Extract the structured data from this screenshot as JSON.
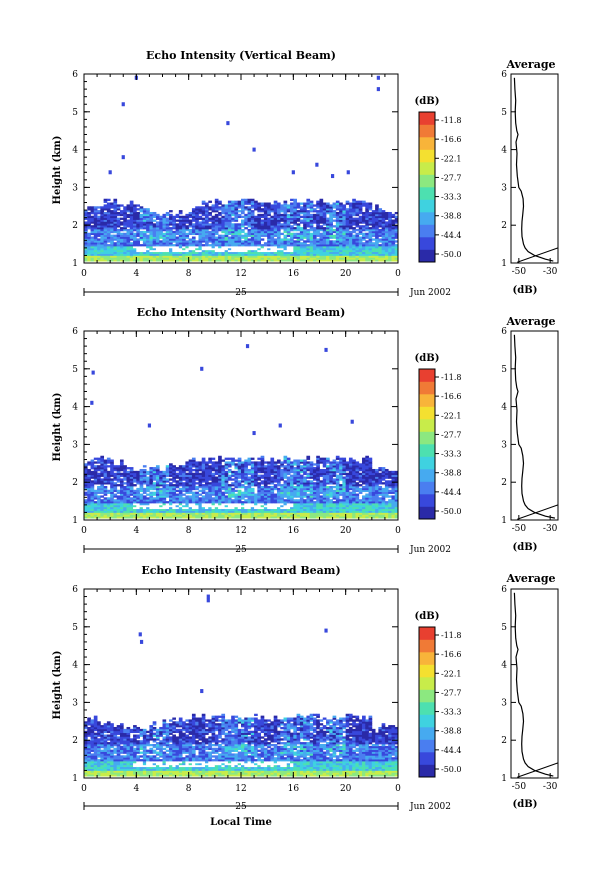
{
  "chart_data": [
    {
      "type": "heatmap",
      "title": "Echo Intensity (Vertical Beam)",
      "ylabel": "Height (km)",
      "x_ticks": [
        "0",
        "4",
        "8",
        "12",
        "16",
        "20",
        "0"
      ],
      "y_ticks": [
        "1",
        "2",
        "3",
        "4",
        "5",
        "6"
      ],
      "xlim": [
        0,
        24
      ],
      "ylim": [
        1,
        6
      ],
      "date_day": "25",
      "date_month_year": "Jun 2002",
      "colorbar": {
        "unit": "(dB)",
        "levels": [
          "-11.8",
          "-16.6",
          "-22.1",
          "-27.7",
          "-33.3",
          "-38.8",
          "-44.4",
          "-50.0"
        ]
      },
      "profile": {
        "title": "Average",
        "xlabel": "(dB)",
        "x_ticks": [
          "-50",
          "-30"
        ],
        "xlim": [
          -55,
          -25
        ],
        "height": [
          1.05,
          1.1,
          1.2,
          1.3,
          1.4,
          1.5,
          1.7,
          1.9,
          2.1,
          2.3,
          2.5,
          2.7,
          2.9,
          3.0,
          3.3,
          3.6,
          3.9,
          4.2,
          4.4,
          4.5,
          4.7,
          5.0,
          5.3,
          5.6,
          5.9
        ],
        "echo_db": [
          -28,
          -33,
          -40,
          -44,
          -46,
          -47,
          -48,
          -48.2,
          -48,
          -47.5,
          -47,
          -47.3,
          -48.5,
          -50,
          -51,
          -51.5,
          -51.2,
          -51.8,
          -50.5,
          -51.3,
          -52,
          -52.3,
          -52,
          -52.5,
          -52.8
        ]
      },
      "scatter_echoes": [
        {
          "time": 4.0,
          "height": 5.9
        },
        {
          "time": 3.0,
          "height": 5.2
        },
        {
          "time": 3.0,
          "height": 3.8
        },
        {
          "time": 11.0,
          "height": 4.7
        },
        {
          "time": 13.0,
          "height": 4.0
        },
        {
          "time": 16.0,
          "height": 3.4
        },
        {
          "time": 17.8,
          "height": 3.6
        },
        {
          "time": 19.0,
          "height": 3.3
        },
        {
          "time": 20.2,
          "height": 3.4
        },
        {
          "time": 22.5,
          "height": 5.9
        },
        {
          "time": 22.5,
          "height": 5.6
        },
        {
          "time": 2.0,
          "height": 3.4
        }
      ]
    },
    {
      "type": "heatmap",
      "title": "Echo Intensity (Northward Beam)",
      "ylabel": "Height (km)",
      "x_ticks": [
        "0",
        "4",
        "8",
        "12",
        "16",
        "20",
        "0"
      ],
      "y_ticks": [
        "1",
        "2",
        "3",
        "4",
        "5",
        "6"
      ],
      "xlim": [
        0,
        24
      ],
      "ylim": [
        1,
        6
      ],
      "date_day": "25",
      "date_month_year": "Jun 2002",
      "colorbar": {
        "unit": "(dB)",
        "levels": [
          "-11.8",
          "-16.6",
          "-22.1",
          "-27.7",
          "-33.3",
          "-38.8",
          "-44.4",
          "-50.0"
        ]
      },
      "profile": {
        "title": "Average",
        "xlabel": "(dB)",
        "x_ticks": [
          "-50",
          "-30"
        ],
        "xlim": [
          -55,
          -25
        ],
        "height": [
          1.05,
          1.1,
          1.2,
          1.3,
          1.4,
          1.5,
          1.7,
          1.9,
          2.1,
          2.3,
          2.5,
          2.7,
          2.9,
          3.0,
          3.3,
          3.6,
          3.9,
          4.2,
          4.4,
          4.5,
          4.7,
          5.0,
          5.3,
          5.6,
          5.9
        ],
        "echo_db": [
          -27,
          -33,
          -40,
          -44,
          -46,
          -47,
          -48,
          -48.2,
          -48,
          -47.5,
          -47,
          -47.5,
          -48.5,
          -50,
          -51,
          -51.5,
          -51.2,
          -51.8,
          -50.5,
          -51.3,
          -52,
          -52.3,
          -52,
          -52.5,
          -52.8
        ]
      },
      "scatter_echoes": [
        {
          "time": 0.7,
          "height": 4.9
        },
        {
          "time": 0.6,
          "height": 4.1
        },
        {
          "time": 9.0,
          "height": 5.0
        },
        {
          "time": 12.5,
          "height": 5.6
        },
        {
          "time": 18.5,
          "height": 5.5
        },
        {
          "time": 15.0,
          "height": 3.5
        },
        {
          "time": 20.5,
          "height": 3.6
        },
        {
          "time": 5.0,
          "height": 3.5
        },
        {
          "time": 13.0,
          "height": 3.3
        }
      ]
    },
    {
      "type": "heatmap",
      "title": "Echo Intensity (Eastward Beam)",
      "ylabel": "Height (km)",
      "xlabel": "Local Time",
      "x_ticks": [
        "0",
        "4",
        "8",
        "12",
        "16",
        "20",
        "0"
      ],
      "y_ticks": [
        "1",
        "2",
        "3",
        "4",
        "5",
        "6"
      ],
      "xlim": [
        0,
        24
      ],
      "ylim": [
        1,
        6
      ],
      "date_day": "25",
      "date_month_year": "Jun 2002",
      "colorbar": {
        "unit": "(dB)",
        "levels": [
          "-11.8",
          "-16.6",
          "-22.1",
          "-27.7",
          "-33.3",
          "-38.8",
          "-44.4",
          "-50.0"
        ]
      },
      "profile": {
        "title": "Average",
        "xlabel": "(dB)",
        "x_ticks": [
          "-50",
          "-30"
        ],
        "xlim": [
          -55,
          -25
        ],
        "height": [
          1.05,
          1.1,
          1.2,
          1.3,
          1.4,
          1.5,
          1.7,
          1.9,
          2.1,
          2.3,
          2.5,
          2.7,
          2.9,
          3.0,
          3.3,
          3.6,
          3.9,
          4.2,
          4.4,
          4.5,
          4.7,
          5.0,
          5.3,
          5.6,
          5.9
        ],
        "echo_db": [
          -28,
          -33,
          -40,
          -44,
          -46,
          -47,
          -48,
          -48.2,
          -48,
          -47.5,
          -47,
          -47.4,
          -48.5,
          -50,
          -51,
          -51.5,
          -51.2,
          -51.8,
          -50.5,
          -51.3,
          -52,
          -52.3,
          -52,
          -52.5,
          -52.8
        ]
      },
      "scatter_echoes": [
        {
          "time": 9.5,
          "height": 5.8
        },
        {
          "time": 9.5,
          "height": 5.7
        },
        {
          "time": 4.3,
          "height": 4.8
        },
        {
          "time": 4.4,
          "height": 4.6
        },
        {
          "time": 9.0,
          "height": 3.3
        },
        {
          "time": 18.5,
          "height": 4.9
        }
      ]
    }
  ],
  "colors": {
    "scale": [
      "#2a2aa8",
      "#3848dc",
      "#4a7ef0",
      "#46aaf0",
      "#3fd2e0",
      "#4de0b0",
      "#8ce880",
      "#c8ec4a",
      "#f4e030",
      "#f8b43a",
      "#f07a36",
      "#e84030"
    ]
  }
}
